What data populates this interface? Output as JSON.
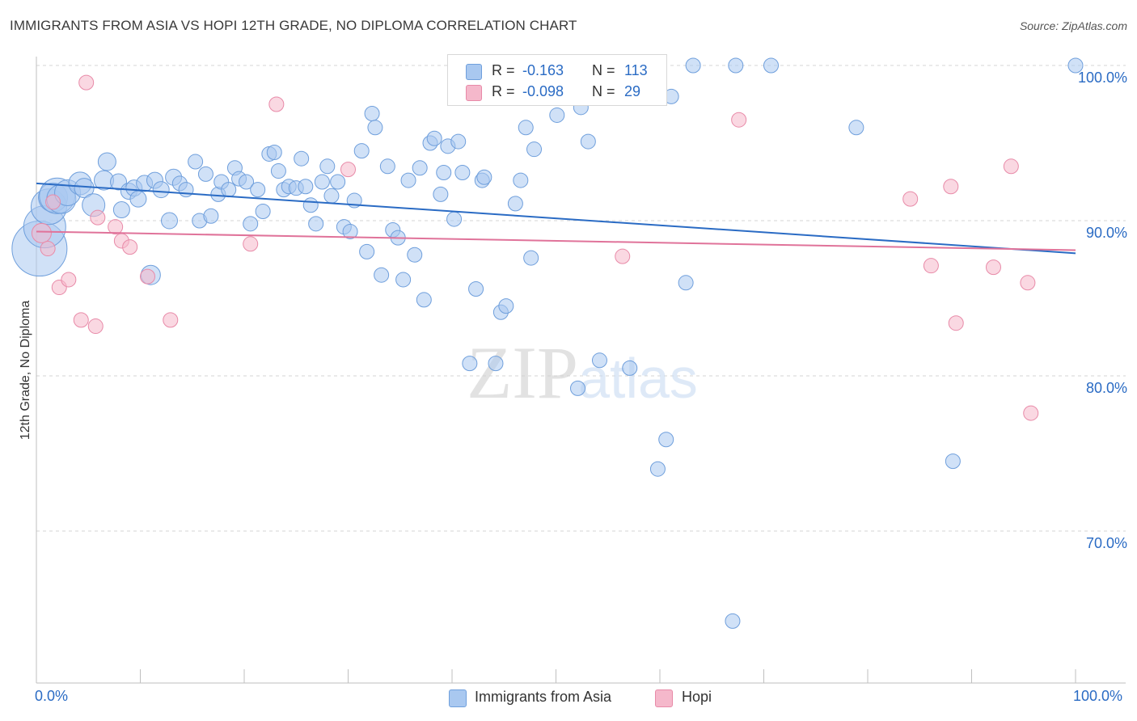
{
  "title": "IMMIGRANTS FROM ASIA VS HOPI 12TH GRADE, NO DIPLOMA CORRELATION CHART",
  "source": "Source: ZipAtlas.com",
  "watermark": "ZIPatlas",
  "legend": {
    "rows": [
      {
        "r_label": "R =",
        "r_value": "-0.163",
        "n_label": "N =",
        "n_value": "113",
        "color": "#a9c8f0",
        "border": "#6f9fdc"
      },
      {
        "r_label": "R =",
        "r_value": "-0.098",
        "n_label": "N =",
        "n_value": "29",
        "color": "#f5b8cb",
        "border": "#e88aa8"
      }
    ]
  },
  "bottom_legend": [
    {
      "label": "Immigrants from Asia",
      "color": "#a9c8f0",
      "border": "#6f9fdc"
    },
    {
      "label": "Hopi",
      "color": "#f5b8cb",
      "border": "#e88aa8"
    }
  ],
  "chart_data": {
    "type": "scatter",
    "ylabel": "12th Grade, No Diploma",
    "x_tick_labels": [
      "0.0%",
      "100.0%"
    ],
    "y_tick_labels": [
      "100.0%",
      "90.0%",
      "80.0%",
      "70.0%"
    ],
    "y_ticks": [
      100,
      90,
      80,
      70
    ],
    "xlim": [
      0,
      100
    ],
    "ylim": [
      60,
      101.5
    ],
    "grid": "horizontal dashed",
    "series": [
      {
        "name": "Immigrants from Asia",
        "color": "#a9c8f0",
        "stroke": "#6f9fdc",
        "trend": {
          "x": [
            0,
            100
          ],
          "y": [
            92.4,
            87.9
          ],
          "color": "#2a6bc4"
        },
        "points": [
          [
            0.3,
            88.2,
            34
          ],
          [
            0.8,
            89.6,
            26
          ],
          [
            1.2,
            90.9,
            22
          ],
          [
            1.6,
            91.5,
            18
          ],
          [
            2.0,
            91.6,
            22
          ],
          [
            2.4,
            91.4,
            18
          ],
          [
            3.0,
            91.8,
            16
          ],
          [
            4.2,
            92.4,
            14
          ],
          [
            4.6,
            92.1,
            12
          ],
          [
            5.5,
            91.0,
            14
          ],
          [
            6.5,
            92.6,
            12
          ],
          [
            6.8,
            93.8,
            11
          ],
          [
            7.9,
            92.5,
            10
          ],
          [
            8.2,
            90.7,
            10
          ],
          [
            8.9,
            91.9,
            10
          ],
          [
            9.4,
            92.1,
            10
          ],
          [
            9.8,
            91.4,
            10
          ],
          [
            10.4,
            92.4,
            10
          ],
          [
            11.0,
            86.5,
            12
          ],
          [
            11.4,
            92.6,
            10
          ],
          [
            12.0,
            92.0,
            10
          ],
          [
            12.8,
            90.0,
            10
          ],
          [
            13.2,
            92.8,
            10
          ],
          [
            13.8,
            92.4,
            9
          ],
          [
            14.4,
            92.0,
            9
          ],
          [
            15.3,
            93.8,
            9
          ],
          [
            15.7,
            90.0,
            9
          ],
          [
            16.3,
            93.0,
            9
          ],
          [
            16.8,
            90.3,
            9
          ],
          [
            17.5,
            91.7,
            9
          ],
          [
            17.8,
            92.5,
            9
          ],
          [
            18.5,
            92.0,
            9
          ],
          [
            19.1,
            93.4,
            9
          ],
          [
            19.5,
            92.7,
            9
          ],
          [
            20.2,
            92.5,
            9
          ],
          [
            20.6,
            89.8,
            9
          ],
          [
            21.3,
            92.0,
            9
          ],
          [
            21.8,
            90.6,
            9
          ],
          [
            22.4,
            94.3,
            9
          ],
          [
            22.9,
            94.4,
            9
          ],
          [
            23.3,
            93.2,
            9
          ],
          [
            23.8,
            92.0,
            9
          ],
          [
            24.3,
            92.2,
            9
          ],
          [
            25.0,
            92.1,
            9
          ],
          [
            25.5,
            94.0,
            9
          ],
          [
            25.9,
            92.2,
            9
          ],
          [
            26.4,
            91.0,
            9
          ],
          [
            26.9,
            89.8,
            9
          ],
          [
            27.5,
            92.5,
            9
          ],
          [
            28.0,
            93.5,
            9
          ],
          [
            28.4,
            91.6,
            9
          ],
          [
            29.0,
            92.5,
            9
          ],
          [
            29.6,
            89.6,
            9
          ],
          [
            30.2,
            89.3,
            9
          ],
          [
            30.6,
            91.3,
            9
          ],
          [
            31.3,
            94.5,
            9
          ],
          [
            31.8,
            88.0,
            9
          ],
          [
            32.3,
            96.9,
            9
          ],
          [
            32.6,
            96.0,
            9
          ],
          [
            33.2,
            86.5,
            9
          ],
          [
            33.8,
            93.5,
            9
          ],
          [
            34.3,
            89.4,
            9
          ],
          [
            34.8,
            88.9,
            9
          ],
          [
            35.3,
            86.2,
            9
          ],
          [
            35.8,
            92.6,
            9
          ],
          [
            36.4,
            87.8,
            9
          ],
          [
            36.9,
            93.4,
            9
          ],
          [
            37.3,
            84.9,
            9
          ],
          [
            37.9,
            95.0,
            9
          ],
          [
            38.3,
            95.3,
            9
          ],
          [
            38.9,
            91.7,
            9
          ],
          [
            39.2,
            93.1,
            9
          ],
          [
            39.6,
            94.8,
            9
          ],
          [
            40.2,
            90.1,
            9
          ],
          [
            40.6,
            95.1,
            9
          ],
          [
            41.0,
            93.1,
            9
          ],
          [
            41.7,
            80.8,
            9
          ],
          [
            42.3,
            85.6,
            9
          ],
          [
            42.9,
            92.6,
            9
          ],
          [
            43.1,
            92.8,
            9
          ],
          [
            44.2,
            80.8,
            9
          ],
          [
            44.7,
            84.1,
            9
          ],
          [
            45.2,
            84.5,
            9
          ],
          [
            45.4,
            98.5,
            9
          ],
          [
            46.1,
            91.1,
            9
          ],
          [
            46.6,
            92.6,
            9
          ],
          [
            47.1,
            96.0,
            9
          ],
          [
            47.6,
            87.6,
            9
          ],
          [
            47.9,
            94.6,
            9
          ],
          [
            50.1,
            96.8,
            9
          ],
          [
            52.1,
            79.2,
            9
          ],
          [
            52.4,
            97.3,
            9
          ],
          [
            53.1,
            95.1,
            9
          ],
          [
            53.8,
            100.0,
            9
          ],
          [
            54.2,
            81.0,
            9
          ],
          [
            57.1,
            80.5,
            9
          ],
          [
            59.8,
            74.0,
            9
          ],
          [
            60.6,
            75.9,
            9
          ],
          [
            61.1,
            98.0,
            9
          ],
          [
            62.5,
            86.0,
            9
          ],
          [
            63.2,
            100.0,
            9
          ],
          [
            67.0,
            64.2,
            9
          ],
          [
            67.3,
            100.0,
            9
          ],
          [
            70.7,
            100.0,
            9
          ],
          [
            78.9,
            96.0,
            9
          ],
          [
            88.2,
            74.5,
            9
          ],
          [
            100.0,
            100.0,
            9
          ]
        ]
      },
      {
        "name": "Hopi",
        "color": "#f5b8cb",
        "stroke": "#e88aa8",
        "trend": {
          "x": [
            0,
            100
          ],
          "y": [
            89.3,
            88.1
          ],
          "color": "#e0739a"
        },
        "points": [
          [
            0.5,
            89.2,
            12
          ],
          [
            1.1,
            88.2,
            9
          ],
          [
            1.6,
            91.2,
            9
          ],
          [
            2.2,
            85.7,
            9
          ],
          [
            3.1,
            86.2,
            9
          ],
          [
            4.3,
            83.6,
            9
          ],
          [
            4.8,
            98.9,
            9
          ],
          [
            5.7,
            83.2,
            9
          ],
          [
            5.9,
            90.2,
            9
          ],
          [
            7.6,
            89.6,
            9
          ],
          [
            8.2,
            88.7,
            9
          ],
          [
            9.0,
            88.3,
            9
          ],
          [
            10.7,
            86.4,
            9
          ],
          [
            12.9,
            83.6,
            9
          ],
          [
            20.6,
            88.5,
            9
          ],
          [
            23.1,
            97.5,
            9
          ],
          [
            30.0,
            93.3,
            9
          ],
          [
            56.4,
            87.7,
            9
          ],
          [
            67.6,
            96.5,
            9
          ],
          [
            84.1,
            91.4,
            9
          ],
          [
            86.1,
            87.1,
            9
          ],
          [
            88.0,
            92.2,
            9
          ],
          [
            88.5,
            83.4,
            9
          ],
          [
            92.1,
            87.0,
            9
          ],
          [
            93.8,
            93.5,
            9
          ],
          [
            95.4,
            86.0,
            9
          ],
          [
            95.7,
            77.6,
            9
          ]
        ]
      }
    ]
  }
}
